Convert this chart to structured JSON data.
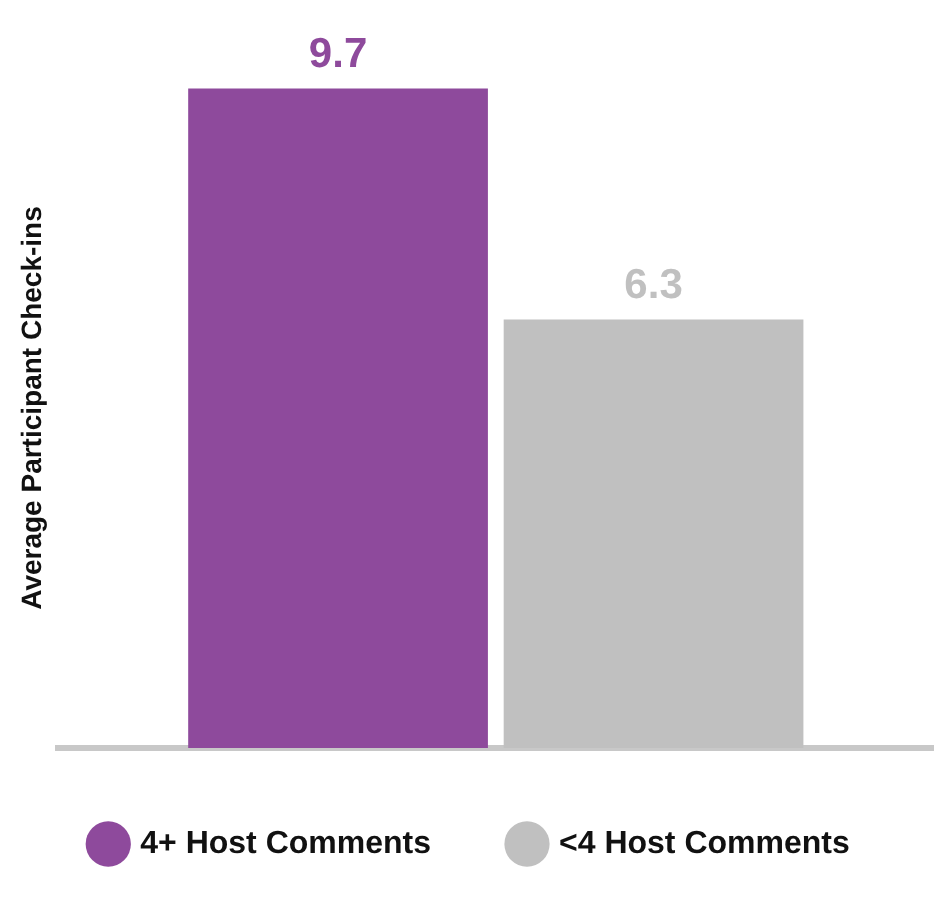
{
  "chart_data": {
    "type": "bar",
    "ylabel": "Average Participant Check-ins",
    "categories": [
      null
    ],
    "series": [
      {
        "name": "4+ Host Comments",
        "color": "#8e4a9c",
        "values": [
          9.7
        ]
      },
      {
        "name": "<4 Host Comments",
        "color": "#c0c0c0",
        "values": [
          6.3
        ]
      }
    ],
    "data_labels": true,
    "legend": "bottom",
    "tick_labels": false,
    "grid": false
  }
}
